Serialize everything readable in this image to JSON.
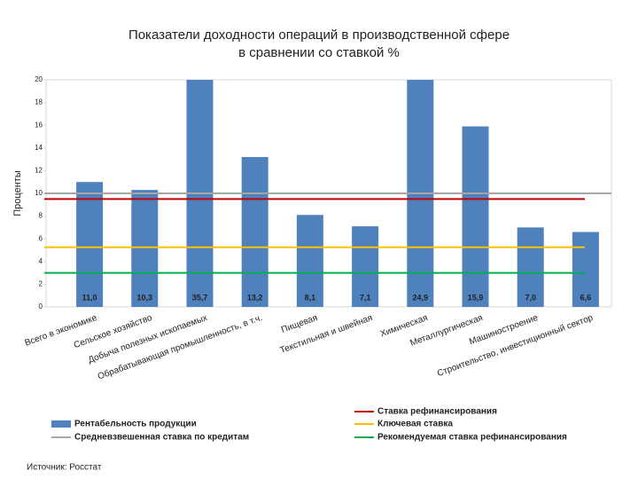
{
  "chart_data": {
    "type": "bar",
    "title": [
      "Показатели доходности операций в производственной сфере",
      "в сравнении со ставкой %"
    ],
    "ylabel": "Проценты",
    "categories": [
      "Всего в экономике",
      "Сельское хозяйство",
      "Добыча полезных ископаемых",
      "Обрабатывающая промышленность, в т.ч.",
      "Пищевая",
      "Текстильная и швейная",
      "Химическая",
      "Металлургическая",
      "Машиностроение",
      "Строительство, инвестиционный сектор"
    ],
    "series": [
      {
        "name": "Рентабельность продукции",
        "color": "#4f81bd",
        "values": [
          11.0,
          10.3,
          35.7,
          13.2,
          8.1,
          7.1,
          24.9,
          15.9,
          7.0,
          6.6
        ],
        "value_labels": [
          "11,0",
          "10,3",
          "35,7",
          "13,2",
          "8,1",
          "7,1",
          "24,9",
          "15,9",
          "7,0",
          "6,6"
        ]
      }
    ],
    "lines": [
      {
        "name": "Средневзвешенная ставка по кредитам",
        "color": "#a6a6a6",
        "value": 10.0
      },
      {
        "name": "Ставка рефинансирования",
        "color": "#c00000",
        "value": 9.5
      },
      {
        "name": "Ключевая ставка",
        "color": "#ffc000",
        "value": 5.25
      },
      {
        "name": "Рекомендуемая ставка рефинансирования",
        "color": "#00b050",
        "value": 3.0
      }
    ],
    "ylim": [
      0,
      20
    ],
    "yticks": [
      0,
      2,
      4,
      6,
      8,
      10,
      12,
      14,
      16,
      18,
      20
    ],
    "grid": false,
    "source": "Источник: Росстат"
  }
}
